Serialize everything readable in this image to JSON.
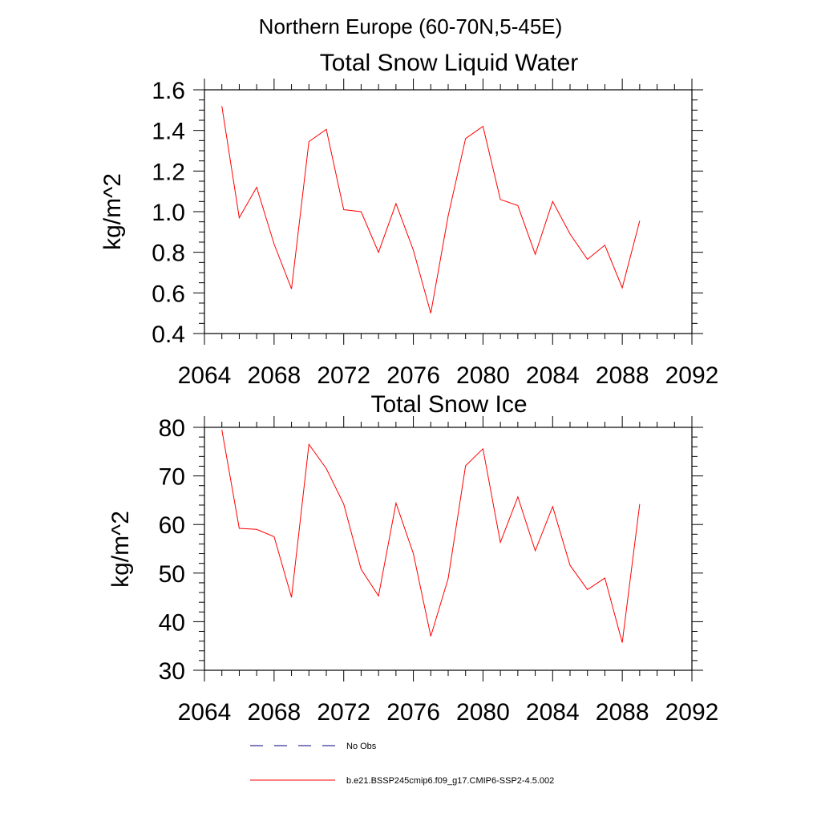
{
  "figure": {
    "supertitle": "Northern Europe (60-70N,5-45E)"
  },
  "chart_data": [
    {
      "type": "line",
      "title": "Total Snow Liquid Water",
      "xlabel": "",
      "ylabel": "kg/m^2",
      "xlim": [
        2064,
        2092
      ],
      "ylim": [
        0.4,
        1.6
      ],
      "x_ticks": [
        2064,
        2068,
        2072,
        2076,
        2080,
        2084,
        2088,
        2092
      ],
      "y_ticks": [
        0.4,
        0.6,
        0.8,
        1.0,
        1.2,
        1.4,
        1.6
      ],
      "y_tick_labels": [
        "0.4",
        "0.6",
        "0.8",
        "1.0",
        "1.2",
        "1.4",
        "1.6"
      ],
      "y_minor_step": 0.05,
      "grid": false,
      "x": [
        2065,
        2066,
        2067,
        2068,
        2069,
        2070,
        2071,
        2072,
        2073,
        2074,
        2075,
        2076,
        2077,
        2078,
        2079,
        2080,
        2081,
        2082,
        2083,
        2084,
        2085,
        2086,
        2087,
        2088,
        2089
      ],
      "series": [
        {
          "color": "#ff0000",
          "values": [
            1.52,
            0.97,
            1.12,
            0.84,
            0.62,
            1.345,
            1.405,
            1.01,
            1.0,
            0.8,
            1.04,
            0.81,
            0.5,
            0.98,
            1.36,
            1.42,
            1.06,
            1.03,
            0.79,
            1.05,
            0.89,
            0.765,
            0.835,
            0.625,
            0.955
          ]
        }
      ]
    },
    {
      "type": "line",
      "title": "Total Snow Ice",
      "xlabel": "",
      "ylabel": "kg/m^2",
      "xlim": [
        2064,
        2092
      ],
      "ylim": [
        30,
        80
      ],
      "x_ticks": [
        2064,
        2068,
        2072,
        2076,
        2080,
        2084,
        2088,
        2092
      ],
      "y_ticks": [
        30,
        40,
        50,
        60,
        70,
        80
      ],
      "y_tick_labels": [
        "30",
        "40",
        "50",
        "60",
        "70",
        "80"
      ],
      "y_minor_step": 2,
      "grid": false,
      "x": [
        2065,
        2066,
        2067,
        2068,
        2069,
        2070,
        2071,
        2072,
        2073,
        2074,
        2075,
        2076,
        2077,
        2078,
        2079,
        2080,
        2081,
        2082,
        2083,
        2084,
        2085,
        2086,
        2087,
        2088,
        2089
      ],
      "series": [
        {
          "color": "#ff0000",
          "values": [
            79.5,
            59.2,
            59.0,
            57.5,
            45.0,
            76.5,
            71.5,
            64.2,
            50.8,
            45.3,
            64.4,
            54.0,
            37.0,
            48.9,
            72.1,
            75.6,
            56.3,
            65.7,
            54.6,
            63.7,
            51.6,
            46.6,
            49.0,
            35.7,
            64.2
          ]
        }
      ]
    }
  ],
  "legend": {
    "placement": "bottom",
    "items": [
      {
        "label": "No Obs",
        "color": "#000080",
        "style": "dashed"
      },
      {
        "label": "b.e21.BSSP245cmip6.f09_g17.CMIP6-SSP2-4.5.002",
        "color": "#ff0000",
        "style": "solid"
      }
    ]
  }
}
